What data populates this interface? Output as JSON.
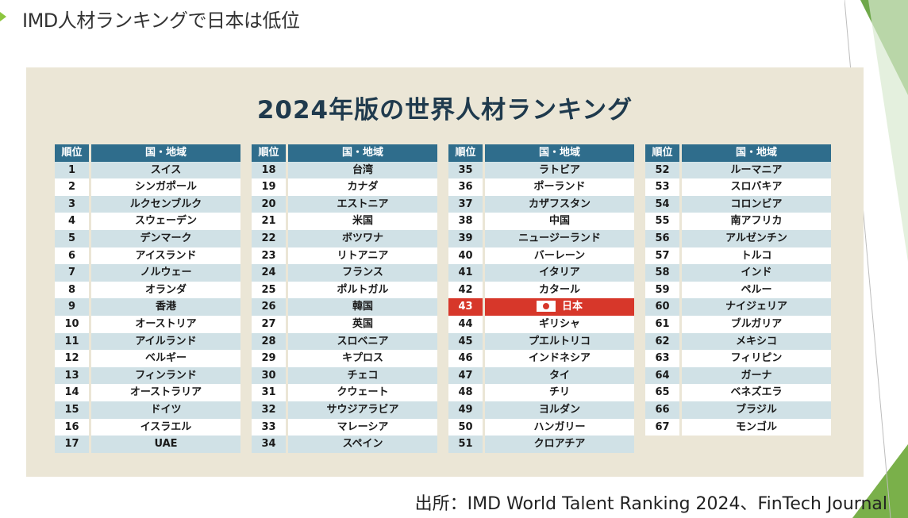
{
  "slide": {
    "title": "IMD人材ランキングで日本は低位",
    "source": "出所：IMD World Talent Ranking 2024、FinTech Journal"
  },
  "figure": {
    "title": "2024年版の世界人材ランキング",
    "header": {
      "rank": "順位",
      "country": "国・地域"
    },
    "highlight_color": "#d7372a",
    "columns": [
      [
        {
          "rank": "1",
          "name": "スイス"
        },
        {
          "rank": "2",
          "name": "シンガポール"
        },
        {
          "rank": "3",
          "name": "ルクセンブルク"
        },
        {
          "rank": "4",
          "name": "スウェーデン"
        },
        {
          "rank": "5",
          "name": "デンマーク"
        },
        {
          "rank": "6",
          "name": "アイスランド"
        },
        {
          "rank": "7",
          "name": "ノルウェー"
        },
        {
          "rank": "8",
          "name": "オランダ"
        },
        {
          "rank": "9",
          "name": "香港"
        },
        {
          "rank": "10",
          "name": "オーストリア"
        },
        {
          "rank": "11",
          "name": "アイルランド"
        },
        {
          "rank": "12",
          "name": "ベルギー"
        },
        {
          "rank": "13",
          "name": "フィンランド"
        },
        {
          "rank": "14",
          "name": "オーストラリア"
        },
        {
          "rank": "15",
          "name": "ドイツ"
        },
        {
          "rank": "16",
          "name": "イスラエル"
        },
        {
          "rank": "17",
          "name": "UAE"
        }
      ],
      [
        {
          "rank": "18",
          "name": "台湾"
        },
        {
          "rank": "19",
          "name": "カナダ"
        },
        {
          "rank": "20",
          "name": "エストニア"
        },
        {
          "rank": "21",
          "name": "米国"
        },
        {
          "rank": "22",
          "name": "ボツワナ"
        },
        {
          "rank": "23",
          "name": "リトアニア"
        },
        {
          "rank": "24",
          "name": "フランス"
        },
        {
          "rank": "25",
          "name": "ポルトガル"
        },
        {
          "rank": "26",
          "name": "韓国"
        },
        {
          "rank": "27",
          "name": "英国"
        },
        {
          "rank": "28",
          "name": "スロベニア"
        },
        {
          "rank": "29",
          "name": "キプロス"
        },
        {
          "rank": "30",
          "name": "チェコ"
        },
        {
          "rank": "31",
          "name": "クウェート"
        },
        {
          "rank": "32",
          "name": "サウジアラビア"
        },
        {
          "rank": "33",
          "name": "マレーシア"
        },
        {
          "rank": "34",
          "name": "スペイン"
        }
      ],
      [
        {
          "rank": "35",
          "name": "ラトビア"
        },
        {
          "rank": "36",
          "name": "ポーランド"
        },
        {
          "rank": "37",
          "name": "カザフスタン"
        },
        {
          "rank": "38",
          "name": "中国"
        },
        {
          "rank": "39",
          "name": "ニュージーランド"
        },
        {
          "rank": "40",
          "name": "バーレーン"
        },
        {
          "rank": "41",
          "name": "イタリア"
        },
        {
          "rank": "42",
          "name": "カタール"
        },
        {
          "rank": "43",
          "name": "日本",
          "highlight": true
        },
        {
          "rank": "44",
          "name": "ギリシャ"
        },
        {
          "rank": "45",
          "name": "プエルトリコ"
        },
        {
          "rank": "46",
          "name": "インドネシア"
        },
        {
          "rank": "47",
          "name": "タイ"
        },
        {
          "rank": "48",
          "name": "チリ"
        },
        {
          "rank": "49",
          "name": "ヨルダン"
        },
        {
          "rank": "50",
          "name": "ハンガリー"
        },
        {
          "rank": "51",
          "name": "クロアチア"
        }
      ],
      [
        {
          "rank": "52",
          "name": "ルーマニア"
        },
        {
          "rank": "53",
          "name": "スロバキア"
        },
        {
          "rank": "54",
          "name": "コロンビア"
        },
        {
          "rank": "55",
          "name": "南アフリカ"
        },
        {
          "rank": "56",
          "name": "アルゼンチン"
        },
        {
          "rank": "57",
          "name": "トルコ"
        },
        {
          "rank": "58",
          "name": "インド"
        },
        {
          "rank": "59",
          "name": "ペルー"
        },
        {
          "rank": "60",
          "name": "ナイジェリア"
        },
        {
          "rank": "61",
          "name": "ブルガリア"
        },
        {
          "rank": "62",
          "name": "メキシコ"
        },
        {
          "rank": "63",
          "name": "フィリピン"
        },
        {
          "rank": "64",
          "name": "ガーナ"
        },
        {
          "rank": "65",
          "name": "ベネズエラ"
        },
        {
          "rank": "66",
          "name": "ブラジル"
        },
        {
          "rank": "67",
          "name": "モンゴル"
        }
      ]
    ]
  }
}
